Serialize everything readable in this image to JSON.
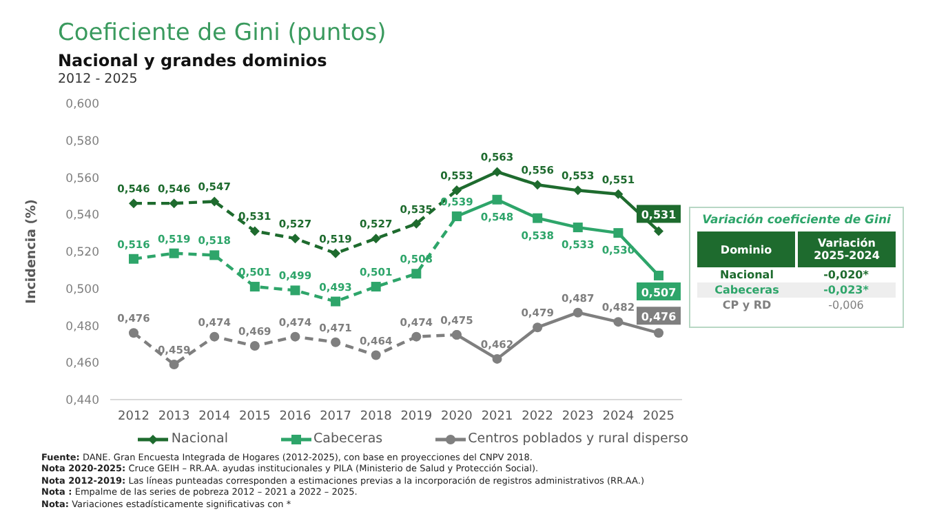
{
  "chart_data": [
    {
      "type": "line",
      "title": "Coeficiente de Gini (puntos)",
      "subtitle": "Nacional y grandes dominios\n2012 - 2025",
      "ylabel": "Incidencia (%)",
      "categories": [
        "2012",
        "2013",
        "2014",
        "2015",
        "2016",
        "2017",
        "2018",
        "2019",
        "2020",
        "2021",
        "2022",
        "2023",
        "2024",
        "2025"
      ],
      "ylim": [
        0.44,
        0.6
      ],
      "yticks": [
        {
          "value": 0.44,
          "label": "0,440"
        },
        {
          "value": 0.46,
          "label": "0,460"
        },
        {
          "value": 0.48,
          "label": "0,480"
        },
        {
          "value": 0.5,
          "label": "0,500"
        },
        {
          "value": 0.52,
          "label": "0,520"
        },
        {
          "value": 0.54,
          "label": "0,540"
        },
        {
          "value": 0.56,
          "label": "0,560"
        },
        {
          "value": 0.58,
          "label": "0,580"
        },
        {
          "value": 0.6,
          "label": "0,600"
        }
      ],
      "legend": "bottom",
      "series": [
        {
          "name": "Nacional",
          "color": "#1e6b2e",
          "marker": "diamond",
          "line_style": "dashed",
          "values": [
            0.546,
            0.546,
            0.547,
            0.531,
            0.527,
            0.519,
            0.527,
            0.535,
            0.553,
            null,
            null,
            null,
            null,
            null
          ],
          "value_labels": [
            "0,546",
            "0,546",
            "0,547",
            "0,531",
            "0,527",
            "0,519",
            "0,527",
            "0,535",
            "0,553",
            null,
            null,
            null,
            null,
            null
          ]
        },
        {
          "color": "#1e6b2e",
          "marker": "diamond",
          "line_style": "solid",
          "values": [
            null,
            null,
            null,
            null,
            null,
            null,
            null,
            null,
            0.553,
            0.563,
            0.556,
            0.553,
            0.551,
            0.531
          ],
          "value_labels": [
            null,
            null,
            null,
            null,
            null,
            null,
            null,
            null,
            null,
            "0,563",
            "0,556",
            "0,553",
            "0,551",
            "0,531"
          ]
        },
        {
          "name": "Cabeceras",
          "color": "#2ea56a",
          "marker": "square",
          "line_style": "dashed",
          "values": [
            0.516,
            0.519,
            0.518,
            0.501,
            0.499,
            0.493,
            0.501,
            0.508,
            0.539,
            null,
            null,
            null,
            null,
            null
          ],
          "value_labels": [
            "0,516",
            "0,519",
            "0,518",
            "0,501",
            "0,499",
            "0,493",
            "0,501",
            "0,508",
            "0,539",
            null,
            null,
            null,
            null,
            null
          ]
        },
        {
          "color": "#2ea56a",
          "marker": "square",
          "line_style": "solid",
          "values": [
            null,
            null,
            null,
            null,
            null,
            null,
            null,
            null,
            0.539,
            0.548,
            0.538,
            0.533,
            0.53,
            0.507
          ],
          "value_labels": [
            null,
            null,
            null,
            null,
            null,
            null,
            null,
            null,
            null,
            "0,548",
            "0,538",
            "0,533",
            "0,530",
            "0,507"
          ]
        },
        {
          "name": "Centros poblados y rural disperso",
          "color": "#7f7f7f",
          "marker": "circle",
          "line_style": "dashed",
          "values": [
            0.476,
            0.459,
            0.474,
            0.469,
            0.474,
            0.471,
            0.464,
            0.474,
            0.475,
            null,
            null,
            null,
            null,
            null
          ],
          "value_labels": [
            "0,476",
            "0,459",
            "0,474",
            "0,469",
            "0,474",
            "0,471",
            "0,464",
            "0,474",
            "0,475",
            null,
            null,
            null,
            null,
            null
          ]
        },
        {
          "color": "#7f7f7f",
          "marker": "circle",
          "line_style": "solid",
          "values": [
            null,
            null,
            null,
            null,
            null,
            null,
            null,
            null,
            0.475,
            0.462,
            0.479,
            0.487,
            0.482,
            0.476
          ],
          "value_labels": [
            null,
            null,
            null,
            null,
            null,
            null,
            null,
            null,
            null,
            "0,462",
            "0,479",
            "0,487",
            "0,482",
            "0,476"
          ]
        }
      ],
      "annotations": [
        "Fuente: DANE. Gran Encuesta Integrada de Hogares (2012-2025), con base en proyecciones del CNPV 2018.",
        "Nota 2020-2025: Cruce GEIH – RR.AA. ayudas institucionales y PILA (Ministerio de Salud y Protección Social).",
        "Nota 2012-2019: Las líneas punteadas corresponden a estimaciones previas a la incorporación de registros administrativos (RR.AA.)",
        "Nota : Empalme  de las series de pobreza 2012 – 2021 a 2022 – 2025.",
        "Nota: Variaciones estadísticamente significativas con *"
      ]
    },
    {
      "type": "other",
      "title": "Variación coeficiente de Gini",
      "categories": [
        "Dominio",
        "Variación 2025-2024"
      ],
      "y_categories": [
        "Nacional",
        "Cabeceras",
        "CP y RD"
      ],
      "cell_labels": [
        [
          "-0,020*"
        ],
        [
          "-0,023*"
        ],
        [
          "-0,006"
        ]
      ]
    }
  ]
}
